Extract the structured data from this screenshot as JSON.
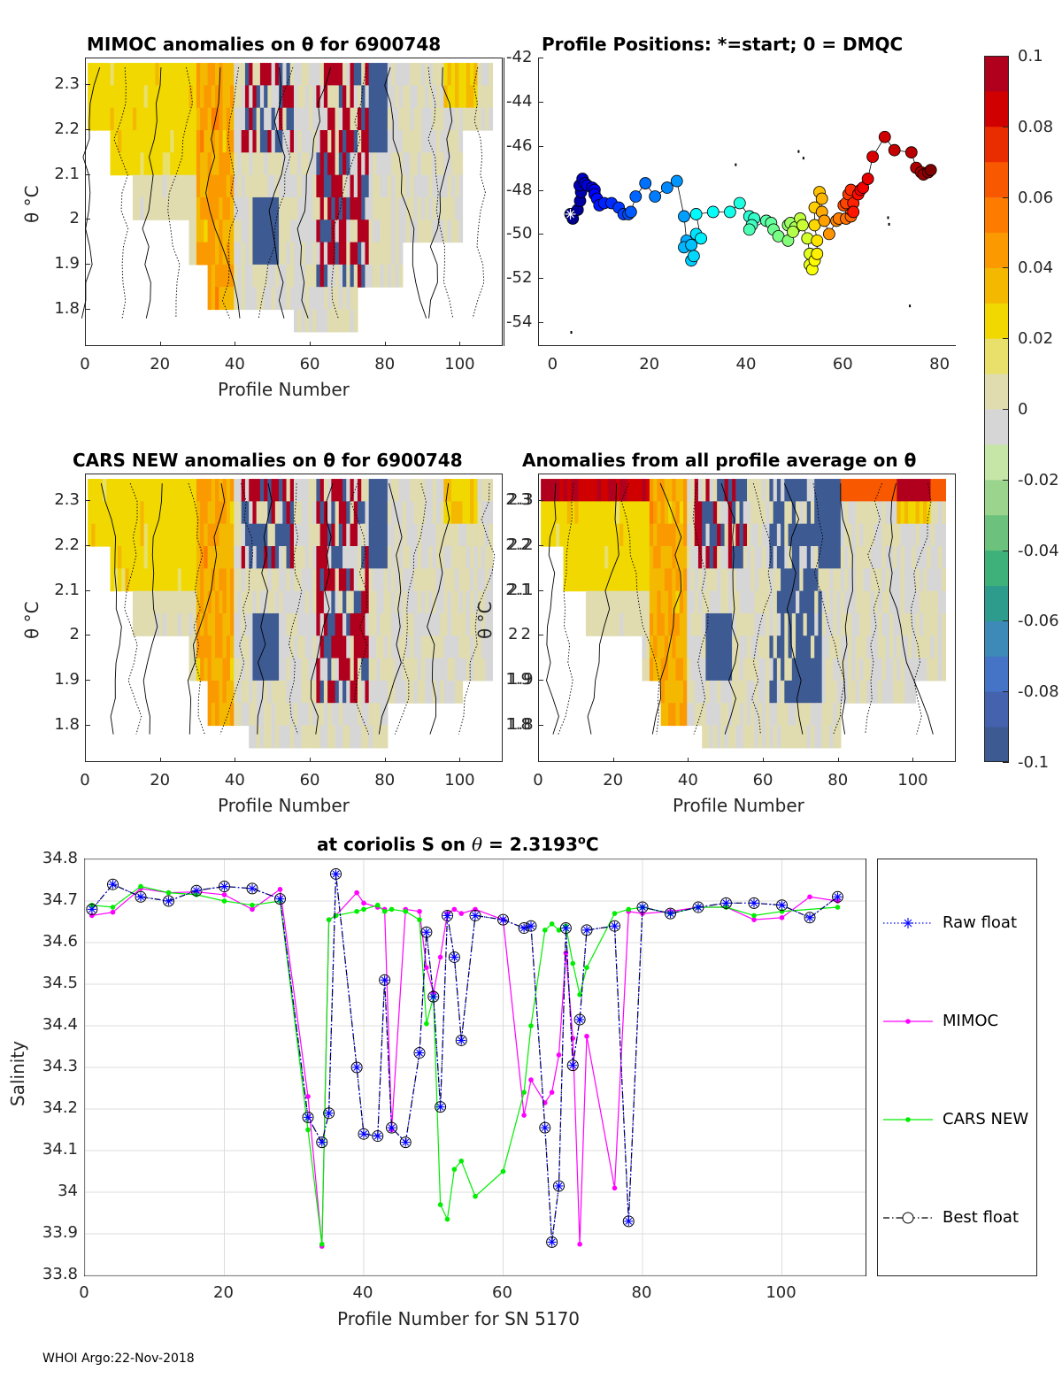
{
  "footer": "WHOI Argo:22-Nov-2018",
  "colorbar": {
    "ticks": [
      "0.1",
      "0.08",
      "0.06",
      "0.04",
      "0.02",
      "0",
      "-0.02",
      "-0.04",
      "-0.06",
      "-0.08",
      "-0.1"
    ],
    "range": [
      -0.1,
      0.1
    ],
    "colors": [
      "#3e5a93",
      "#4462ad",
      "#4573c5",
      "#3d8ab8",
      "#2e9c8c",
      "#3eb079",
      "#6cc27c",
      "#9ad48d",
      "#c6e6a8",
      "#d6d6d6",
      "#e0dcb0",
      "#e8e06a",
      "#f0d800",
      "#f5b800",
      "#fa9a00",
      "#fd7c00",
      "#f85800",
      "#ea2d00",
      "#d00000",
      "#b0001e"
    ]
  },
  "chart_data": [
    {
      "id": "mimoc_anomalies",
      "type": "heatmap",
      "title": "MIMOC anomalies on θ  for 6900748",
      "xlabel": "Profile Number",
      "ylabel": "θ °C",
      "xticks": [
        "0",
        "20",
        "40",
        "60",
        "80",
        "100"
      ],
      "yticks": [
        "2.3",
        "2.2",
        "2.1",
        "2",
        "1.9",
        "1.8"
      ],
      "xlim": [
        0,
        111
      ],
      "ylim": [
        1.72,
        2.36
      ],
      "grid": false
    },
    {
      "id": "profile_positions",
      "type": "scatter",
      "title": "Profile Positions: *=start; 0 = DMQC",
      "xticks": [
        "0",
        "20",
        "40",
        "60",
        "80"
      ],
      "yticks": [
        "-42",
        "-44",
        "-46",
        "-48",
        "-50",
        "-52",
        "-54"
      ],
      "xlim": [
        -3,
        83
      ],
      "ylim": [
        -55,
        -42
      ],
      "start_marker": "*",
      "points": [
        [
          3.5,
          -49.1
        ],
        [
          4,
          -49.3
        ],
        [
          5,
          -48.9
        ],
        [
          5.5,
          -48.5
        ],
        [
          5.7,
          -48.1
        ],
        [
          5.4,
          -47.8
        ],
        [
          6,
          -47.5
        ],
        [
          6.5,
          -47.7
        ],
        [
          7,
          -47.8
        ],
        [
          8,
          -47.9
        ],
        [
          8.5,
          -48.0
        ],
        [
          8.5,
          -48.2
        ],
        [
          9,
          -48.4
        ],
        [
          9.5,
          -48.7
        ],
        [
          10.5,
          -48.6
        ],
        [
          12,
          -48.6
        ],
        [
          13.5,
          -48.8
        ],
        [
          14.5,
          -49.1
        ],
        [
          15.5,
          -49.1
        ],
        [
          16,
          -49.0
        ],
        [
          17,
          -48.3
        ],
        [
          19,
          -47.7
        ],
        [
          21,
          -48.3
        ],
        [
          23.5,
          -47.9
        ],
        [
          25.5,
          -47.6
        ],
        [
          27,
          -49.2
        ],
        [
          27.5,
          -50.3
        ],
        [
          27,
          -50.6
        ],
        [
          28.5,
          -50.5
        ],
        [
          28.5,
          -51.2
        ],
        [
          29,
          -51.0
        ],
        [
          29.5,
          -50.0
        ],
        [
          30.5,
          -50.2
        ],
        [
          29.5,
          -49.1
        ],
        [
          33,
          -49.0
        ],
        [
          36.5,
          -49.0
        ],
        [
          38.5,
          -48.6
        ],
        [
          40.5,
          -49.2
        ],
        [
          41.5,
          -49.3
        ],
        [
          41,
          -49.6
        ],
        [
          40.5,
          -49.8
        ],
        [
          44,
          -49.4
        ],
        [
          45,
          -49.5
        ],
        [
          45.5,
          -49.8
        ],
        [
          46.5,
          -50.1
        ],
        [
          48.5,
          -50.3
        ],
        [
          48.5,
          -49.6
        ],
        [
          49,
          -49.5
        ],
        [
          50,
          -49.7
        ],
        [
          49.5,
          -49.9
        ],
        [
          51,
          -49.3
        ],
        [
          51.5,
          -49.6
        ],
        [
          52.5,
          -50.2
        ],
        [
          53,
          -50.9
        ],
        [
          53,
          -51.4
        ],
        [
          53.5,
          -51.6
        ],
        [
          54,
          -51.2
        ],
        [
          54.5,
          -50.9
        ],
        [
          54.5,
          -50.3
        ],
        [
          54,
          -49.6
        ],
        [
          54,
          -48.8
        ],
        [
          55,
          -48.1
        ],
        [
          55.5,
          -48.4
        ],
        [
          55.5,
          -49.0
        ],
        [
          56,
          -49.4
        ],
        [
          57,
          -50.0
        ],
        [
          58.5,
          -49.4
        ],
        [
          59,
          -49.3
        ],
        [
          60.5,
          -49.3
        ],
        [
          61.5,
          -49.2
        ],
        [
          61.5,
          -48.9
        ],
        [
          60,
          -48.7
        ],
        [
          60.5,
          -48.6
        ],
        [
          61,
          -48.2
        ],
        [
          61.5,
          -48.0
        ],
        [
          62,
          -48.6
        ],
        [
          62,
          -49.0
        ],
        [
          63,
          -48.2
        ],
        [
          63.5,
          -48.0
        ],
        [
          64,
          -47.9
        ],
        [
          65,
          -47.5
        ],
        [
          66,
          -46.5
        ],
        [
          68.5,
          -45.6
        ],
        [
          70.5,
          -46.2
        ],
        [
          74,
          -46.3
        ],
        [
          75,
          -47.0
        ],
        [
          76,
          -47.2
        ],
        [
          76.5,
          -47.3
        ],
        [
          77.5,
          -47.2
        ],
        [
          78,
          -47.1
        ]
      ]
    },
    {
      "id": "cars_new_anomalies",
      "type": "heatmap",
      "title": "CARS NEW anomalies on θ for 6900748",
      "xlabel": "Profile Number",
      "ylabel": "θ °C",
      "xticks": [
        "0",
        "20",
        "40",
        "60",
        "80",
        "100"
      ],
      "yticks": [
        "2.3",
        "2.2",
        "2.1",
        "2",
        "1.9",
        "1.8"
      ],
      "xlim": [
        0,
        111
      ],
      "ylim": [
        1.72,
        2.36
      ],
      "grid": false
    },
    {
      "id": "profile_average_anomalies",
      "type": "heatmap",
      "title": "Anomalies from all profile average on θ",
      "xlabel": "Profile Number",
      "ylabel": "θ °C",
      "xticks": [
        "0",
        "20",
        "40",
        "60",
        "80",
        "100"
      ],
      "yticks": [
        "2.3",
        "2.2",
        "2.1",
        "2",
        "1.9",
        "1.8"
      ],
      "xlim": [
        0,
        111
      ],
      "ylim": [
        1.72,
        2.36
      ],
      "grid": false
    },
    {
      "id": "salinity_on_theta",
      "type": "line",
      "title": "at coriolis S on θ = 2.3193°C",
      "title_parts": {
        "prefix": "at coriolis S on ",
        "theta": "θ",
        "suffix": " = 2.3193",
        "deg": "o",
        "unit": "C"
      },
      "xlabel": "Profile Number for SN 5170",
      "ylabel": "Salinity",
      "xticks": [
        "0",
        "20",
        "40",
        "60",
        "80",
        "100"
      ],
      "yticks": [
        "34.8",
        "34.7",
        "34.6",
        "34.5",
        "34.4",
        "34.3",
        "34.2",
        "34.1",
        "34",
        "33.9",
        "33.8"
      ],
      "xlim": [
        0,
        112
      ],
      "ylim": [
        33.8,
        34.8
      ],
      "grid": true,
      "legend_position": "right-outside",
      "series": [
        {
          "name": "Raw float",
          "color": "#0000ff",
          "style": "dotted",
          "marker": "asterisk",
          "x": [
            1,
            4,
            8,
            12,
            16,
            20,
            24,
            28,
            32,
            34,
            35,
            36,
            39,
            40,
            42,
            43,
            44,
            46,
            48,
            49,
            50,
            51,
            52,
            53,
            54,
            56,
            60,
            63,
            64,
            66,
            67,
            68,
            69,
            70,
            71,
            72,
            76,
            78,
            80,
            84,
            88,
            92,
            96,
            100,
            104,
            108
          ],
          "y": [
            34.68,
            34.74,
            34.71,
            34.7,
            34.725,
            34.735,
            34.73,
            34.705,
            34.18,
            34.12,
            34.19,
            34.765,
            34.3,
            34.14,
            34.135,
            34.51,
            34.155,
            34.12,
            34.335,
            34.625,
            34.47,
            34.205,
            34.665,
            34.565,
            34.365,
            34.665,
            34.655,
            34.635,
            34.64,
            34.155,
            33.88,
            34.015,
            34.635,
            34.305,
            34.415,
            34.63,
            34.64,
            33.93,
            34.685,
            34.67,
            34.685,
            34.695,
            34.695,
            34.69,
            34.66,
            34.71
          ]
        },
        {
          "name": "MIMOC",
          "color": "#ff00ff",
          "style": "solid",
          "marker": "dot",
          "x": [
            1,
            4,
            8,
            12,
            16,
            20,
            24,
            28,
            32,
            34,
            35,
            36,
            39,
            40,
            42,
            43,
            44,
            46,
            48,
            49,
            50,
            51,
            52,
            53,
            54,
            56,
            60,
            63,
            64,
            66,
            67,
            68,
            69,
            70,
            71,
            72,
            76,
            78,
            80,
            84,
            88,
            92,
            96,
            100,
            104,
            108
          ],
          "y": [
            34.665,
            34.673,
            34.73,
            34.72,
            34.722,
            34.715,
            34.68,
            34.728,
            34.23,
            33.87,
            34.655,
            34.665,
            34.72,
            34.695,
            34.685,
            34.68,
            34.15,
            34.68,
            34.675,
            34.54,
            34.48,
            34.565,
            34.67,
            34.68,
            34.67,
            34.68,
            34.655,
            34.185,
            34.27,
            34.215,
            34.24,
            34.33,
            34.575,
            34.37,
            33.875,
            34.375,
            34.01,
            34.675,
            34.67,
            34.675,
            34.685,
            34.685,
            34.655,
            34.66,
            34.71,
            34.7
          ]
        },
        {
          "name": "CARS NEW",
          "color": "#00ee00",
          "style": "solid",
          "marker": "dot",
          "x": [
            1,
            4,
            8,
            12,
            16,
            20,
            24,
            28,
            32,
            34,
            35,
            36,
            39,
            40,
            42,
            43,
            44,
            46,
            48,
            49,
            50,
            51,
            52,
            53,
            54,
            56,
            60,
            63,
            64,
            66,
            67,
            68,
            69,
            70,
            71,
            72,
            76,
            78,
            80,
            84,
            88,
            92,
            96,
            100,
            108
          ],
          "y": [
            34.69,
            34.685,
            34.735,
            34.72,
            34.715,
            34.7,
            34.69,
            34.7,
            34.15,
            33.875,
            34.655,
            34.665,
            34.675,
            34.68,
            34.69,
            34.675,
            34.68,
            34.675,
            34.655,
            34.405,
            34.47,
            33.97,
            33.935,
            34.055,
            34.075,
            33.99,
            34.05,
            34.24,
            34.4,
            34.63,
            34.645,
            34.63,
            34.64,
            34.55,
            34.475,
            34.54,
            34.67,
            34.68,
            34.685,
            34.67,
            34.685,
            34.685,
            34.665,
            34.675,
            34.685
          ]
        },
        {
          "name": "Best float",
          "color": "#000000",
          "style": "dashdot",
          "marker": "circle",
          "x": [
            1,
            4,
            8,
            12,
            16,
            20,
            24,
            28,
            32,
            34,
            35,
            36,
            39,
            40,
            42,
            43,
            44,
            46,
            48,
            49,
            50,
            51,
            52,
            53,
            54,
            56,
            60,
            63,
            64,
            66,
            67,
            68,
            69,
            70,
            71,
            72,
            76,
            78,
            80,
            84,
            88,
            92,
            96,
            100,
            104,
            108
          ],
          "y": [
            34.68,
            34.74,
            34.71,
            34.7,
            34.725,
            34.735,
            34.73,
            34.705,
            34.18,
            34.12,
            34.19,
            34.765,
            34.3,
            34.14,
            34.135,
            34.51,
            34.155,
            34.12,
            34.335,
            34.625,
            34.47,
            34.205,
            34.665,
            34.565,
            34.365,
            34.665,
            34.655,
            34.635,
            34.64,
            34.155,
            33.88,
            34.015,
            34.635,
            34.305,
            34.415,
            34.63,
            34.64,
            33.93,
            34.685,
            34.67,
            34.685,
            34.695,
            34.695,
            34.69,
            34.66,
            34.71
          ]
        }
      ]
    }
  ]
}
